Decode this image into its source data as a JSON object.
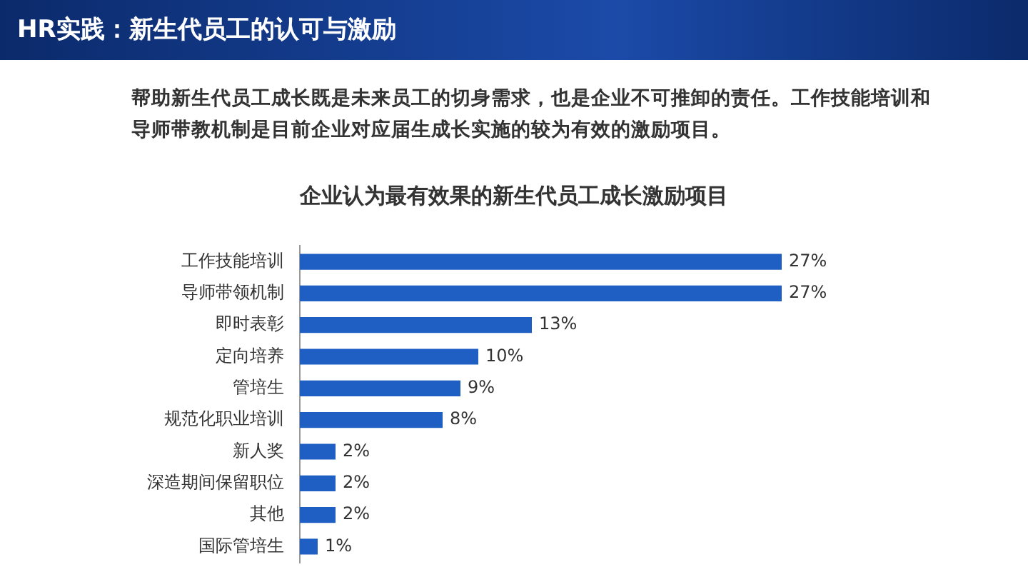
{
  "chart_data": {
    "type": "bar",
    "orientation": "horizontal",
    "title": "HR实践：新生代员工的认可与激励",
    "subtitle": "帮助新生代员工成长既是未来员工的切身需求，也是企业不可推卸的责任。工作技能培训和导师带教机制是目前企业对应届生成长实施的较为有效的激励项目。",
    "annotations": [
      "企业认为最有效果的新生代员工成长激励项目"
    ],
    "categories": [
      "工作技能培训",
      "导师带领机制",
      "即时表彰",
      "定向培养",
      "管培生",
      "规范化职业培训",
      "新人奖",
      "深造期间保留职位",
      "其他",
      "国际管培生"
    ],
    "values": [
      27,
      27,
      13,
      10,
      9,
      8,
      2,
      2,
      2,
      1
    ],
    "value_labels": [
      "27%",
      "27%",
      "13%",
      "10%",
      "9%",
      "8%",
      "2%",
      "2%",
      "2%",
      "1%"
    ],
    "color": "#1f5fc4",
    "grid": false,
    "legend": false,
    "tick_labels": "y"
  }
}
